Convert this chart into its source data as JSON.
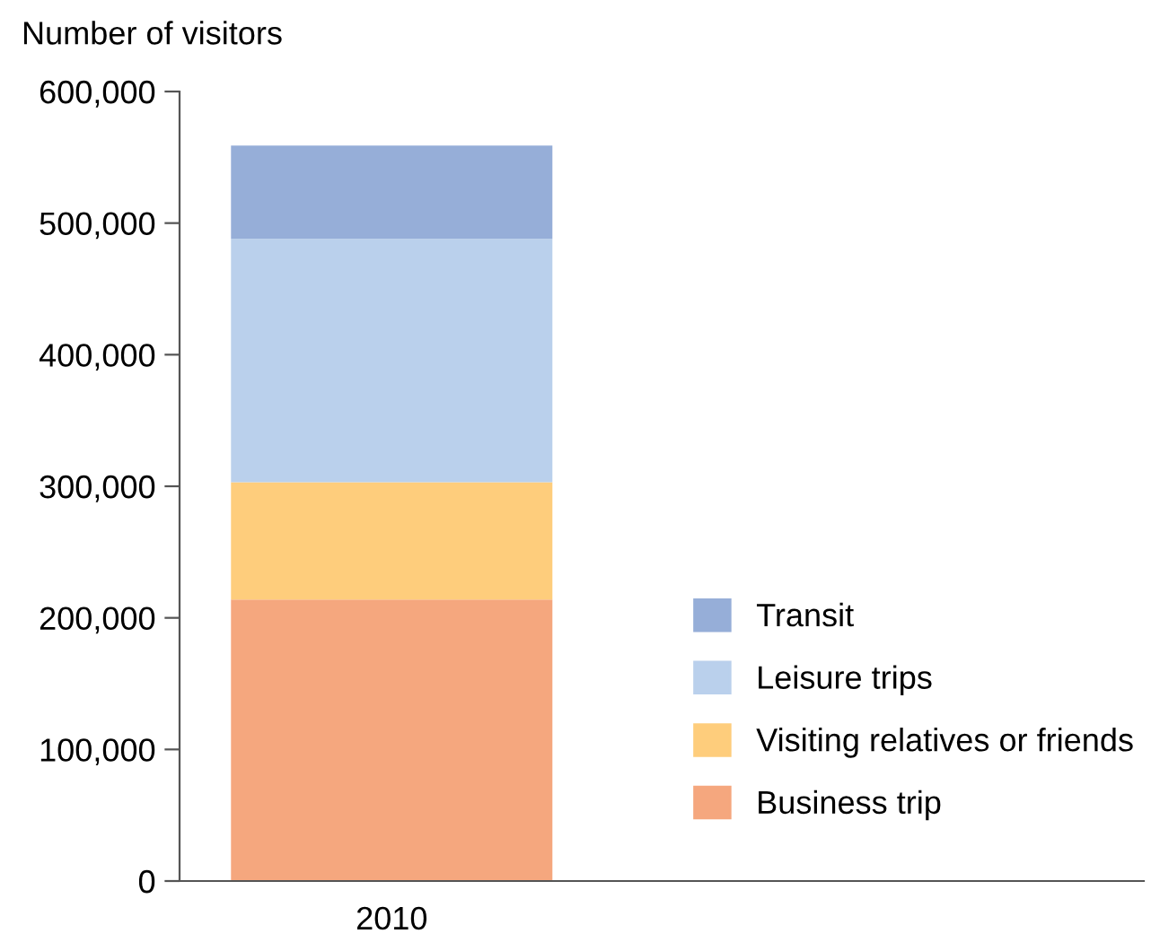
{
  "chart_data": {
    "type": "bar",
    "stacked": true,
    "ylabel": "Number of visitors",
    "categories": [
      "2010"
    ],
    "series": [
      {
        "name": "Business trip",
        "color": "#f5a77e",
        "values": [
          214000
        ]
      },
      {
        "name": "Visiting relatives or friends",
        "color": "#fecd7c",
        "values": [
          89000
        ]
      },
      {
        "name": "Leisure trips",
        "color": "#bad0ec",
        "values": [
          185000
        ]
      },
      {
        "name": "Transit",
        "color": "#96aed8",
        "values": [
          71000
        ]
      }
    ],
    "ylim": [
      0,
      600000
    ],
    "yticks": [
      0,
      {
        "value": 100000,
        "label": "100,000"
      },
      {
        "value": 200000,
        "label": "200,000"
      },
      {
        "value": 300000,
        "label": "300,000"
      },
      {
        "value": 400000,
        "label": "400,000"
      },
      {
        "value": 500000,
        "label": "500,000"
      },
      {
        "value": 600000,
        "label": "600,000"
      }
    ],
    "grid": false,
    "legend": "bottom right"
  }
}
